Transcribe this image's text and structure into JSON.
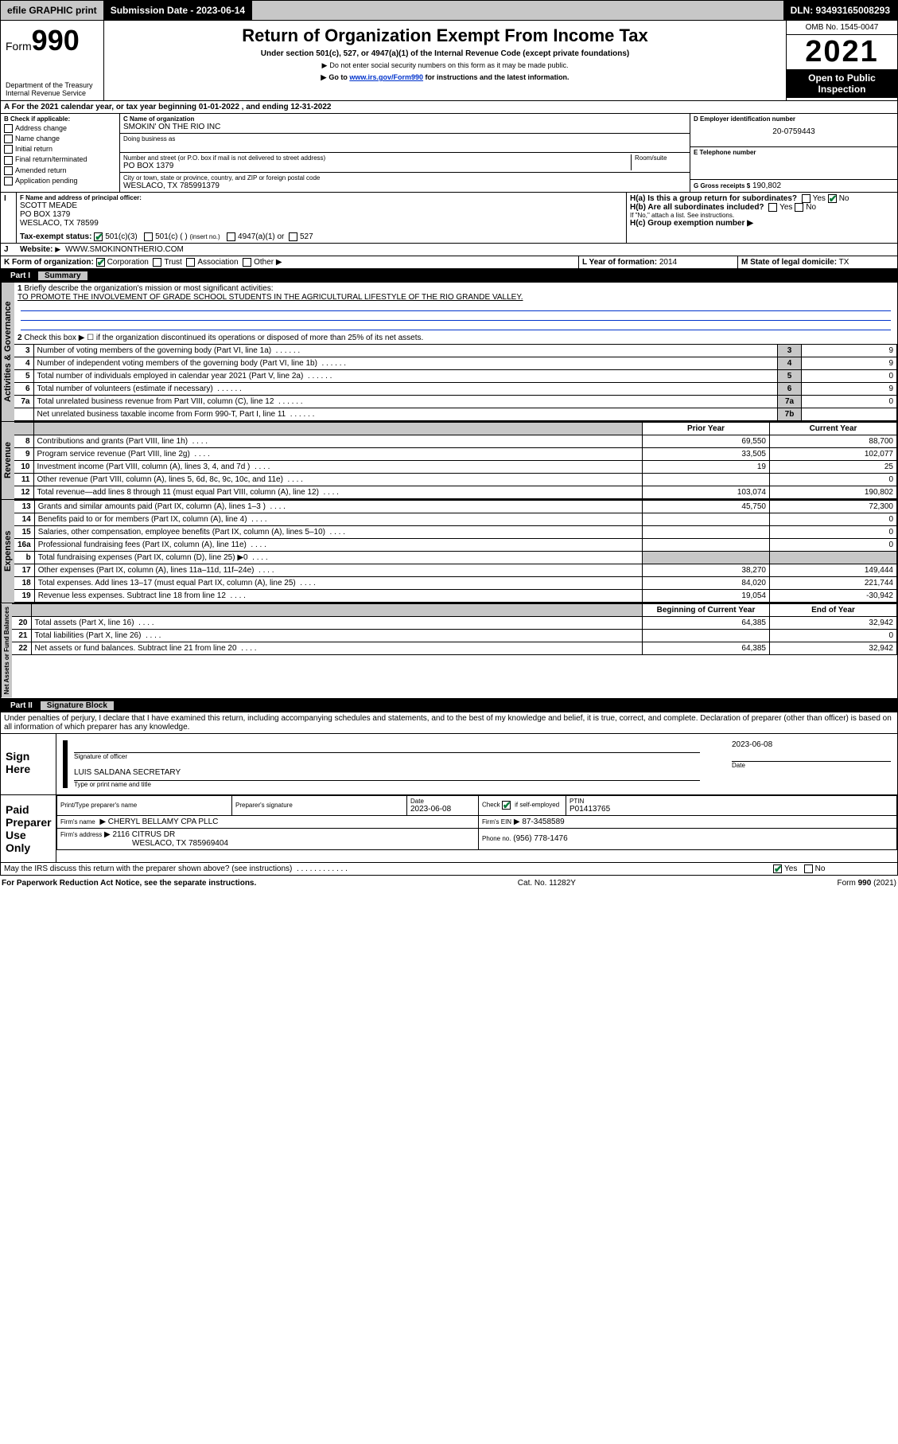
{
  "topbar": {
    "efile": "efile GRAPHIC print",
    "submission_label": "Submission Date - 2023-06-14",
    "dln_label": "DLN: 93493165008293"
  },
  "header": {
    "form_label": "Form",
    "form_number": "990",
    "dept": "Department of the Treasury",
    "irs": "Internal Revenue Service",
    "title": "Return of Organization Exempt From Income Tax",
    "sub1": "Under section 501(c), 527, or 4947(a)(1) of the Internal Revenue Code (except private foundations)",
    "sub2": "Do not enter social security numbers on this form as it may be made public.",
    "sub3_pre": "Go to ",
    "sub3_link": "www.irs.gov/Form990",
    "sub3_post": " for instructions and the latest information.",
    "omb": "OMB No. 1545-0047",
    "year": "2021",
    "open": "Open to Public Inspection"
  },
  "periodA": {
    "text_pre": "For the 2021 calendar year, or tax year beginning ",
    "begin": "01-01-2022",
    "mid": " , and ending ",
    "end": "12-31-2022"
  },
  "boxB": {
    "label": "B Check if applicable:",
    "items": [
      "Address change",
      "Name change",
      "Initial return",
      "Final return/terminated",
      "Amended return",
      "Application pending"
    ]
  },
  "boxC": {
    "label": "C Name of organization",
    "name": "SMOKIN' ON THE RIO INC",
    "dba_label": "Doing business as",
    "addr_label": "Number and street (or P.O. box if mail is not delivered to street address)",
    "room_label": "Room/suite",
    "addr": "PO BOX 1379",
    "city_label": "City or town, state or province, country, and ZIP or foreign postal code",
    "city": "WESLACO, TX  785991379"
  },
  "boxD": {
    "label": "D Employer identification number",
    "value": "20-0759443"
  },
  "boxE": {
    "label": "E Telephone number"
  },
  "boxG": {
    "label": "G Gross receipts $",
    "value": "190,802"
  },
  "boxF": {
    "label": "F Name and address of principal officer:",
    "name": "SCOTT MEADE",
    "addr1": "PO BOX 1379",
    "addr2": "WESLACO, TX  78599"
  },
  "boxH": {
    "a_label": "H(a)  Is this a group return for subordinates?",
    "yes": "Yes",
    "no": "No",
    "b_label": "H(b)  Are all subordinates included?",
    "b_note": "If \"No,\" attach a list. See instructions.",
    "c_label": "H(c)  Group exemption number"
  },
  "boxI": {
    "label": "Tax-exempt status:",
    "opt1": "501(c)(3)",
    "opt2": "501(c) (  )",
    "opt2b": "(insert no.)",
    "opt3": "4947(a)(1) or",
    "opt4": "527"
  },
  "boxJ": {
    "label": "Website:",
    "value": "WWW.SMOKINONTHERIO.COM"
  },
  "boxK": {
    "label": "K Form of organization:",
    "opts": [
      "Corporation",
      "Trust",
      "Association",
      "Other"
    ]
  },
  "boxL": {
    "label": "L Year of formation:",
    "value": "2014"
  },
  "boxM": {
    "label": "M State of legal domicile:",
    "value": "TX"
  },
  "part1": {
    "num": "Part I",
    "title": "Summary"
  },
  "summary": {
    "line1_label": "Briefly describe the organization's mission or most significant activities:",
    "line1_text": "TO PROMOTE THE INVOLVEMENT OF GRADE SCHOOL STUDENTS IN THE AGRICULTURAL LIFESTYLE OF THE RIO GRANDE VALLEY.",
    "line2": "Check this box ▶ ☐  if the organization discontinued its operations or disposed of more than 25% of its net assets.",
    "rows_ag": [
      {
        "n": "3",
        "desc": "Number of voting members of the governing body (Part VI, line 1a)",
        "box": "3",
        "val": "9"
      },
      {
        "n": "4",
        "desc": "Number of independent voting members of the governing body (Part VI, line 1b)",
        "box": "4",
        "val": "9"
      },
      {
        "n": "5",
        "desc": "Total number of individuals employed in calendar year 2021 (Part V, line 2a)",
        "box": "5",
        "val": "0"
      },
      {
        "n": "6",
        "desc": "Total number of volunteers (estimate if necessary)",
        "box": "6",
        "val": "9"
      },
      {
        "n": "7a",
        "desc": "Total unrelated business revenue from Part VIII, column (C), line 12",
        "box": "7a",
        "val": "0"
      },
      {
        "n": "",
        "desc": "Net unrelated business taxable income from Form 990-T, Part I, line 11",
        "box": "7b",
        "val": ""
      }
    ],
    "col_prior": "Prior Year",
    "col_current": "Current Year",
    "rows_rev": [
      {
        "n": "8",
        "desc": "Contributions and grants (Part VIII, line 1h)",
        "p": "69,550",
        "c": "88,700"
      },
      {
        "n": "9",
        "desc": "Program service revenue (Part VIII, line 2g)",
        "p": "33,505",
        "c": "102,077"
      },
      {
        "n": "10",
        "desc": "Investment income (Part VIII, column (A), lines 3, 4, and 7d )",
        "p": "19",
        "c": "25"
      },
      {
        "n": "11",
        "desc": "Other revenue (Part VIII, column (A), lines 5, 6d, 8c, 9c, 10c, and 11e)",
        "p": "",
        "c": "0"
      },
      {
        "n": "12",
        "desc": "Total revenue—add lines 8 through 11 (must equal Part VIII, column (A), line 12)",
        "p": "103,074",
        "c": "190,802"
      }
    ],
    "rows_exp": [
      {
        "n": "13",
        "desc": "Grants and similar amounts paid (Part IX, column (A), lines 1–3 )",
        "p": "45,750",
        "c": "72,300"
      },
      {
        "n": "14",
        "desc": "Benefits paid to or for members (Part IX, column (A), line 4)",
        "p": "",
        "c": "0"
      },
      {
        "n": "15",
        "desc": "Salaries, other compensation, employee benefits (Part IX, column (A), lines 5–10)",
        "p": "",
        "c": "0"
      },
      {
        "n": "16a",
        "desc": "Professional fundraising fees (Part IX, column (A), line 11e)",
        "p": "",
        "c": "0"
      },
      {
        "n": "b",
        "desc": "Total fundraising expenses (Part IX, column (D), line 25) ▶0",
        "p": "GREY",
        "c": "GREY"
      },
      {
        "n": "17",
        "desc": "Other expenses (Part IX, column (A), lines 11a–11d, 11f–24e)",
        "p": "38,270",
        "c": "149,444"
      },
      {
        "n": "18",
        "desc": "Total expenses. Add lines 13–17 (must equal Part IX, column (A), line 25)",
        "p": "84,020",
        "c": "221,744"
      },
      {
        "n": "19",
        "desc": "Revenue less expenses. Subtract line 18 from line 12",
        "p": "19,054",
        "c": "-30,942"
      }
    ],
    "col_begin": "Beginning of Current Year",
    "col_end": "End of Year",
    "rows_na": [
      {
        "n": "20",
        "desc": "Total assets (Part X, line 16)",
        "p": "64,385",
        "c": "32,942"
      },
      {
        "n": "21",
        "desc": "Total liabilities (Part X, line 26)",
        "p": "",
        "c": "0"
      },
      {
        "n": "22",
        "desc": "Net assets or fund balances. Subtract line 21 from line 20",
        "p": "64,385",
        "c": "32,942"
      }
    ]
  },
  "vlabels": {
    "ag": "Activities & Governance",
    "rev": "Revenue",
    "exp": "Expenses",
    "na": "Net Assets or Fund Balances"
  },
  "part2": {
    "num": "Part II",
    "title": "Signature Block"
  },
  "penalties": "Under penalties of perjury, I declare that I have examined this return, including accompanying schedules and statements, and to the best of my knowledge and belief, it is true, correct, and complete. Declaration of preparer (other than officer) is based on all information of which preparer has any knowledge.",
  "sign": {
    "here": "Sign Here",
    "sig_officer": "Signature of officer",
    "date_label": "Date",
    "date": "2023-06-08",
    "name": "LUIS SALDANA  SECRETARY",
    "name_label": "Type or print name and title"
  },
  "paid": {
    "label": "Paid Preparer Use Only",
    "h1": "Print/Type preparer's name",
    "h2": "Preparer's signature",
    "h3": "Date",
    "h3v": "2023-06-08",
    "h4": "Check ☑ if self-employed",
    "h5": "PTIN",
    "h5v": "P01413765",
    "firm_name_l": "Firm's name",
    "firm_name": "CHERYL BELLAMY CPA PLLC",
    "firm_ein_l": "Firm's EIN",
    "firm_ein": "87-3458589",
    "firm_addr_l": "Firm's address",
    "firm_addr1": "2116 CITRUS DR",
    "firm_addr2": "WESLACO, TX  785969404",
    "phone_l": "Phone no.",
    "phone": "(956) 778-1476"
  },
  "discuss": {
    "q": "May the IRS discuss this return with the preparer shown above? (see instructions)",
    "yes": "Yes",
    "no": "No"
  },
  "footer": {
    "left": "For Paperwork Reduction Act Notice, see the separate instructions.",
    "mid": "Cat. No. 11282Y",
    "right": "Form 990 (2021)"
  },
  "colors": {
    "grey": "#c7c7c7",
    "link": "#0033cc",
    "check": "#0a7a3a"
  }
}
